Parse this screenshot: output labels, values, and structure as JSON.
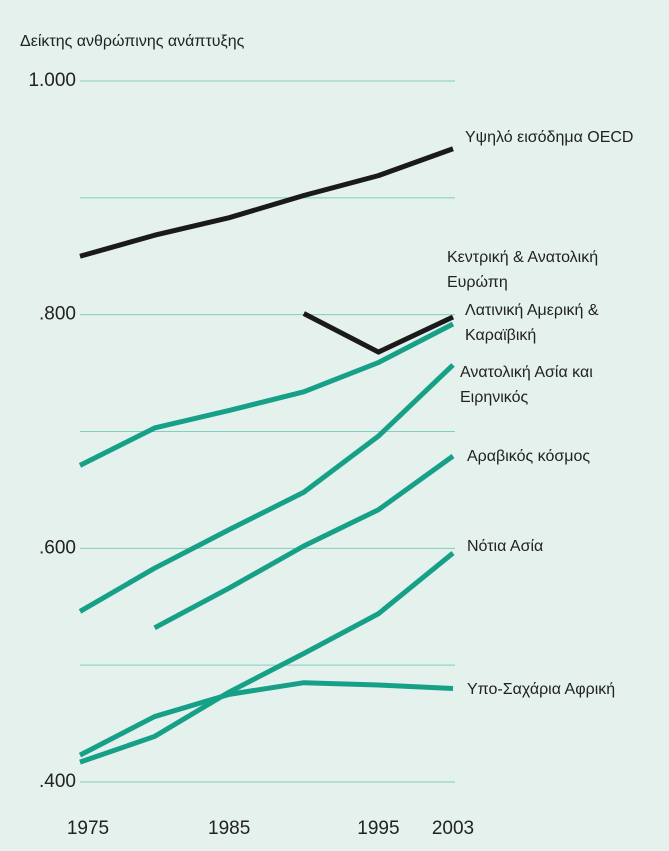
{
  "chart_data": {
    "type": "line",
    "y_label": "Δείκτης ανθρώπινης ανάπτυξης",
    "categories": [
      "1975",
      null,
      "1985",
      null,
      "1995",
      "2003"
    ],
    "ylim": [
      0.4,
      1.0
    ],
    "yticks": [
      {
        "value": 0.4,
        "label": ".400"
      },
      {
        "value": 0.5,
        "label": null
      },
      {
        "value": 0.6,
        "label": ".600"
      },
      {
        "value": 0.7,
        "label": null
      },
      {
        "value": 0.8,
        "label": ".800"
      },
      {
        "value": 0.9,
        "label": null
      },
      {
        "value": 1.0,
        "label": "1.000"
      }
    ],
    "grid": true,
    "series": [
      {
        "name": "Υψηλό εισόδημα OECD",
        "color": "#1a1a1a",
        "values": [
          0.85,
          0.868,
          0.883,
          0.902,
          0.919,
          0.942
        ]
      },
      {
        "name": "Κεντρική & Ανατολική Ευρώπη",
        "color": "#1a1a1a",
        "values": [
          null,
          null,
          null,
          0.801,
          0.768,
          0.798
        ]
      },
      {
        "name": "Λατινική Αμερική & Καραϊβική",
        "color": "#17a088",
        "values": [
          0.671,
          0.703,
          0.718,
          0.734,
          0.759,
          0.792
        ]
      },
      {
        "name": "Ανατολική Ασία και Ειρηνικός",
        "color": "#17a088",
        "values": [
          0.546,
          0.583,
          0.616,
          0.648,
          0.696,
          0.757
        ]
      },
      {
        "name": "Αραβικός κόσμος",
        "color": "#17a088",
        "values": [
          null,
          0.532,
          0.566,
          0.602,
          0.633,
          0.679
        ]
      },
      {
        "name": "Νότια Ασία",
        "color": "#17a088",
        "values": [
          0.417,
          0.439,
          0.477,
          0.51,
          0.544,
          0.596
        ]
      },
      {
        "name": "Υπο-Σαχάρια Αφρική",
        "color": "#17a088",
        "values": [
          0.423,
          0.456,
          0.475,
          0.485,
          0.483,
          0.48
        ]
      }
    ]
  }
}
